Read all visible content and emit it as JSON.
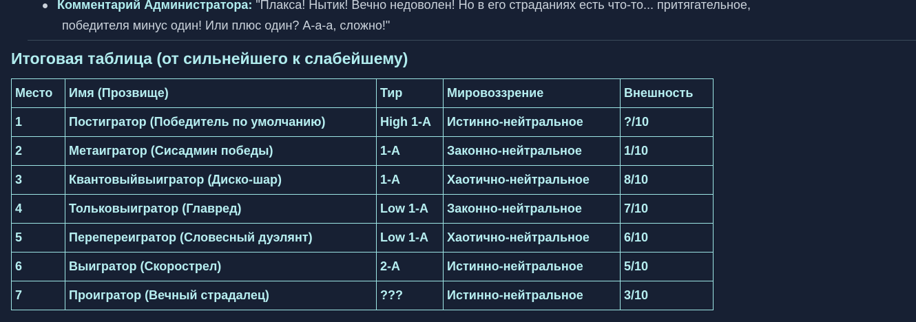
{
  "comment": {
    "label": "Комментарий Администратора:",
    "text_line1": " \"Плакса! Нытик! Вечно недоволен! Но в его страданиях есть что-то... притягательное,",
    "text_line2": "победителя минус один! Или плюс один? А-а-а, сложно!\""
  },
  "heading": "Итоговая таблица (от сильнейшего к слабейшему)",
  "table": {
    "headers": [
      "Место",
      "Имя (Прозвище)",
      "Тир",
      "Мировоззрение",
      "Внешность"
    ],
    "rows": [
      [
        "1",
        "Постигратор (Победитель по умолчанию)",
        "High 1-A",
        "Истинно-нейтральное",
        "?/10"
      ],
      [
        "2",
        "Метаигратор (Сисадмин победы)",
        "1-A",
        "Законно-нейтральное",
        "1/10"
      ],
      [
        "3",
        "Квантовыйвыигратор (Диско-шар)",
        "1-A",
        "Хаотично-нейтральное",
        "8/10"
      ],
      [
        "4",
        "Тольковыигратор (Главред)",
        "Low 1-A",
        "Законно-нейтральное",
        "7/10"
      ],
      [
        "5",
        "Перепереигратор (Словесный дуэлянт)",
        "Low 1-A",
        "Хаотично-нейтральное",
        "6/10"
      ],
      [
        "6",
        "Выигратор (Скорострел)",
        "2-A",
        "Истинно-нейтральное",
        "5/10"
      ],
      [
        "7",
        "Проигратор (Вечный страдалец)",
        "???",
        "Истинно-нейтральное",
        "3/10"
      ]
    ]
  }
}
